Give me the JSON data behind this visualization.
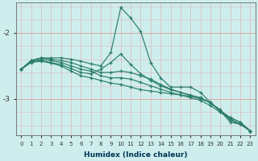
{
  "xlabel": "Humidex (Indice chaleur)",
  "background_color": "#ceeeed",
  "grid_color_v": "#e8c8c8",
  "grid_color_h": "#e8b8b8",
  "line_color": "#2a7d68",
  "xlim": [
    -0.5,
    23.5
  ],
  "ylim": [
    -3.55,
    -1.55
  ],
  "yticks": [
    -3,
    -2
  ],
  "series_x": [
    0,
    1,
    2,
    3,
    4,
    5,
    6,
    7,
    8,
    9,
    10,
    11,
    12,
    13,
    14,
    15,
    16,
    17,
    18,
    19,
    20,
    21,
    22,
    23
  ],
  "series": [
    [
      -2.55,
      -2.42,
      -2.38,
      -2.38,
      -2.38,
      -2.4,
      -2.43,
      -2.47,
      -2.5,
      -2.3,
      -1.62,
      -1.78,
      -1.98,
      -2.45,
      -2.68,
      -2.82,
      -2.82,
      -2.82,
      -2.9,
      -3.05,
      -3.18,
      -3.35,
      -3.38,
      -3.48
    ],
    [
      -2.55,
      -2.42,
      -2.38,
      -2.4,
      -2.42,
      -2.45,
      -2.5,
      -2.55,
      -2.6,
      -2.6,
      -2.58,
      -2.6,
      -2.65,
      -2.7,
      -2.78,
      -2.85,
      -2.9,
      -2.95,
      -3.0,
      -3.05,
      -3.18,
      -3.28,
      -3.35,
      -3.48
    ],
    [
      -2.55,
      -2.43,
      -2.4,
      -2.42,
      -2.45,
      -2.5,
      -2.55,
      -2.58,
      -2.65,
      -2.68,
      -2.68,
      -2.7,
      -2.75,
      -2.8,
      -2.85,
      -2.9,
      -2.94,
      -2.98,
      -3.02,
      -3.1,
      -3.2,
      -3.3,
      -3.38,
      -3.48
    ],
    [
      -2.55,
      -2.44,
      -2.42,
      -2.45,
      -2.48,
      -2.54,
      -2.6,
      -2.62,
      -2.55,
      -2.45,
      -2.32,
      -2.48,
      -2.62,
      -2.72,
      -2.8,
      -2.86,
      -2.9,
      -2.94,
      -2.98,
      -3.06,
      -3.18,
      -3.28,
      -3.35,
      -3.48
    ],
    [
      -2.55,
      -2.45,
      -2.43,
      -2.46,
      -2.5,
      -2.58,
      -2.65,
      -2.68,
      -2.72,
      -2.76,
      -2.78,
      -2.82,
      -2.86,
      -2.88,
      -2.9,
      -2.92,
      -2.94,
      -2.96,
      -2.98,
      -3.06,
      -3.16,
      -3.32,
      -3.38,
      -3.48
    ]
  ]
}
